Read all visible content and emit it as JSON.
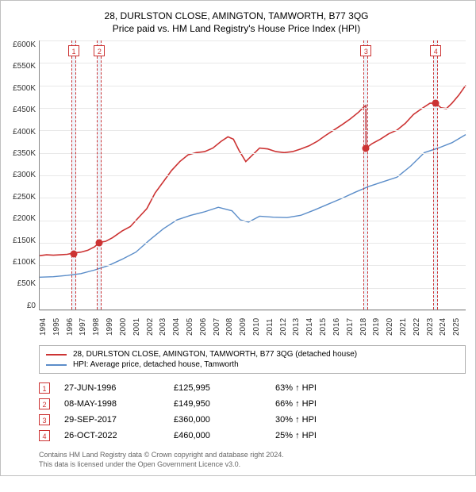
{
  "title_line1": "28, DURLSTON CLOSE, AMINGTON, TAMWORTH, B77 3QG",
  "title_line2": "Price paid vs. HM Land Registry's House Price Index (HPI)",
  "chart": {
    "type": "line",
    "background_color": "#ffffff",
    "grid_color": "#e8e8e8",
    "axis_color": "#888888",
    "marker_band_color": "rgba(70,130,200,0.08)",
    "marker_dash_color": "#cc3333",
    "tick_fontsize": 10,
    "x_start_year": 1994,
    "x_end_year": 2025,
    "x_years": [
      "1994",
      "1995",
      "1996",
      "1997",
      "1998",
      "1999",
      "2000",
      "2001",
      "2002",
      "2003",
      "2004",
      "2005",
      "2006",
      "2007",
      "2008",
      "2009",
      "2010",
      "2011",
      "2012",
      "2013",
      "2014",
      "2015",
      "2016",
      "2017",
      "2018",
      "2019",
      "2020",
      "2021",
      "2022",
      "2023",
      "2024",
      "2025"
    ],
    "ylim": [
      0,
      600000
    ],
    "ytick_step": 50000,
    "yticks": [
      "£600K",
      "£550K",
      "£500K",
      "£450K",
      "£400K",
      "£350K",
      "£300K",
      "£250K",
      "£200K",
      "£150K",
      "£100K",
      "£50K",
      "£0"
    ],
    "series": [
      {
        "name": "price_paid",
        "label": "28, DURLSTON CLOSE, AMINGTON, TAMWORTH, B77 3QG (detached house)",
        "color": "#cc3333",
        "line_width": 1.6,
        "data": [
          [
            1994.0,
            120000
          ],
          [
            1994.5,
            122000
          ],
          [
            1995.0,
            121000
          ],
          [
            1995.5,
            122000
          ],
          [
            1996.0,
            123000
          ],
          [
            1996.48,
            125995
          ],
          [
            1997.0,
            128000
          ],
          [
            1997.5,
            132000
          ],
          [
            1998.0,
            140000
          ],
          [
            1998.35,
            149950
          ],
          [
            1998.8,
            152000
          ],
          [
            1999.3,
            160000
          ],
          [
            2000.0,
            175000
          ],
          [
            2000.6,
            185000
          ],
          [
            2001.2,
            205000
          ],
          [
            2001.8,
            225000
          ],
          [
            2002.4,
            260000
          ],
          [
            2003.0,
            285000
          ],
          [
            2003.6,
            310000
          ],
          [
            2004.2,
            330000
          ],
          [
            2004.8,
            345000
          ],
          [
            2005.4,
            350000
          ],
          [
            2006.0,
            352000
          ],
          [
            2006.6,
            360000
          ],
          [
            2007.2,
            375000
          ],
          [
            2007.7,
            385000
          ],
          [
            2008.1,
            380000
          ],
          [
            2008.5,
            355000
          ],
          [
            2009.0,
            330000
          ],
          [
            2009.5,
            345000
          ],
          [
            2010.0,
            360000
          ],
          [
            2010.6,
            358000
          ],
          [
            2011.2,
            352000
          ],
          [
            2011.8,
            350000
          ],
          [
            2012.4,
            352000
          ],
          [
            2013.0,
            358000
          ],
          [
            2013.6,
            365000
          ],
          [
            2014.2,
            375000
          ],
          [
            2014.8,
            388000
          ],
          [
            2015.4,
            400000
          ],
          [
            2016.0,
            412000
          ],
          [
            2016.6,
            425000
          ],
          [
            2017.2,
            440000
          ],
          [
            2017.6,
            452000
          ],
          [
            2017.74,
            455000
          ],
          [
            2017.75,
            360000
          ],
          [
            2018.2,
            370000
          ],
          [
            2018.8,
            380000
          ],
          [
            2019.4,
            392000
          ],
          [
            2020.0,
            400000
          ],
          [
            2020.6,
            415000
          ],
          [
            2021.2,
            435000
          ],
          [
            2021.8,
            448000
          ],
          [
            2022.4,
            460000
          ],
          [
            2022.82,
            460000
          ],
          [
            2023.2,
            450000
          ],
          [
            2023.6,
            448000
          ],
          [
            2024.0,
            460000
          ],
          [
            2024.5,
            478000
          ],
          [
            2025.0,
            500000
          ]
        ]
      },
      {
        "name": "hpi",
        "label": "HPI: Average price, detached house, Tamworth",
        "color": "#5b8dc9",
        "line_width": 1.4,
        "data": [
          [
            1994.0,
            72000
          ],
          [
            1995.0,
            73000
          ],
          [
            1996.0,
            76000
          ],
          [
            1997.0,
            80000
          ],
          [
            1998.0,
            88000
          ],
          [
            1999.0,
            98000
          ],
          [
            2000.0,
            112000
          ],
          [
            2001.0,
            128000
          ],
          [
            2002.0,
            155000
          ],
          [
            2003.0,
            180000
          ],
          [
            2004.0,
            200000
          ],
          [
            2005.0,
            210000
          ],
          [
            2006.0,
            218000
          ],
          [
            2007.0,
            228000
          ],
          [
            2008.0,
            220000
          ],
          [
            2008.6,
            200000
          ],
          [
            2009.2,
            195000
          ],
          [
            2010.0,
            208000
          ],
          [
            2011.0,
            206000
          ],
          [
            2012.0,
            205000
          ],
          [
            2013.0,
            210000
          ],
          [
            2014.0,
            222000
          ],
          [
            2015.0,
            235000
          ],
          [
            2016.0,
            248000
          ],
          [
            2017.0,
            262000
          ],
          [
            2018.0,
            275000
          ],
          [
            2019.0,
            285000
          ],
          [
            2020.0,
            295000
          ],
          [
            2021.0,
            320000
          ],
          [
            2022.0,
            350000
          ],
          [
            2023.0,
            360000
          ],
          [
            2024.0,
            372000
          ],
          [
            2025.0,
            390000
          ]
        ]
      }
    ],
    "sale_markers": [
      {
        "idx": "1",
        "year": 1996.48,
        "price": 125995
      },
      {
        "idx": "2",
        "year": 1998.35,
        "price": 149950
      },
      {
        "idx": "3",
        "year": 2017.75,
        "price": 360000
      },
      {
        "idx": "4",
        "year": 2022.82,
        "price": 460000
      }
    ]
  },
  "legend": {
    "rows": [
      {
        "color": "#cc3333",
        "label": "28, DURLSTON CLOSE, AMINGTON, TAMWORTH, B77 3QG (detached house)"
      },
      {
        "color": "#5b8dc9",
        "label": "HPI: Average price, detached house, Tamworth"
      }
    ]
  },
  "sales": [
    {
      "idx": "1",
      "date": "27-JUN-1996",
      "price": "£125,995",
      "pct": "63% ↑ HPI"
    },
    {
      "idx": "2",
      "date": "08-MAY-1998",
      "price": "£149,950",
      "pct": "66% ↑ HPI"
    },
    {
      "idx": "3",
      "date": "29-SEP-2017",
      "price": "£360,000",
      "pct": "30% ↑ HPI"
    },
    {
      "idx": "4",
      "date": "26-OCT-2022",
      "price": "£460,000",
      "pct": "25% ↑ HPI"
    }
  ],
  "footnote_line1": "Contains HM Land Registry data © Crown copyright and database right 2024.",
  "footnote_line2": "This data is licensed under the Open Government Licence v3.0."
}
